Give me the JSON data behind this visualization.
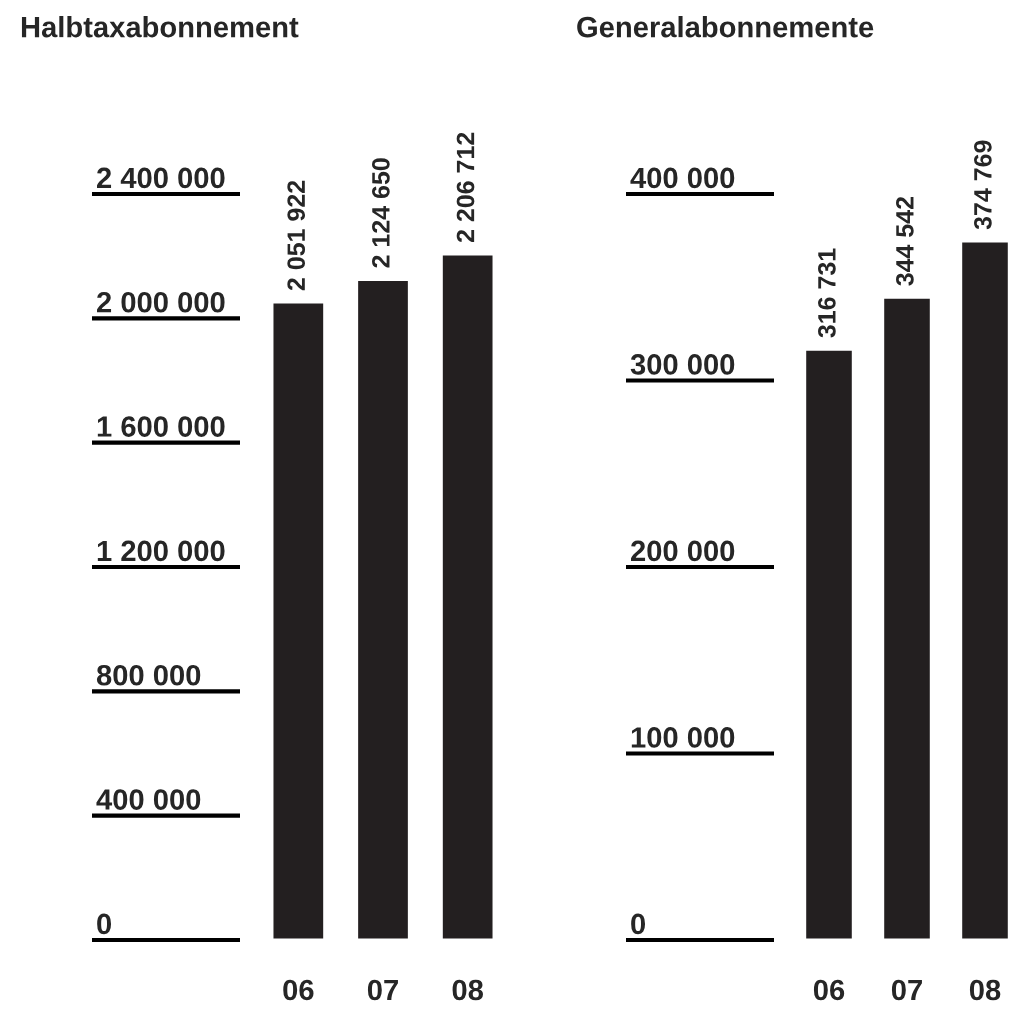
{
  "chart_data": [
    {
      "type": "bar",
      "title": "Halbtaxabonnement",
      "categories": [
        "06",
        "07",
        "08"
      ],
      "values": [
        2051922,
        2124650,
        2206712
      ],
      "value_labels": [
        "2 051 922",
        "2 124 650",
        "2 206 712"
      ],
      "color": "#231f20",
      "ylim": [
        0,
        2400000
      ],
      "yticks": [
        {
          "value": 0,
          "label": "0"
        },
        {
          "value": 400000,
          "label": "400 000"
        },
        {
          "value": 800000,
          "label": "800 000"
        },
        {
          "value": 1200000,
          "label": "1 200 000"
        },
        {
          "value": 1600000,
          "label": "1 600 000"
        },
        {
          "value": 2000000,
          "label": "2 000 000"
        },
        {
          "value": 2400000,
          "label": "2 400 000"
        }
      ],
      "grid": false,
      "legend": false
    },
    {
      "type": "bar",
      "title": "Generalabonnemente",
      "categories": [
        "06",
        "07",
        "08"
      ],
      "values": [
        316731,
        344542,
        374769
      ],
      "value_labels": [
        "316 731",
        "344 542",
        "374 769"
      ],
      "color": "#231f20",
      "ylim": [
        0,
        400000
      ],
      "yticks": [
        {
          "value": 0,
          "label": "0"
        },
        {
          "value": 100000,
          "label": "100 000"
        },
        {
          "value": 200000,
          "label": "200 000"
        },
        {
          "value": 300000,
          "label": "300 000"
        },
        {
          "value": 400000,
          "label": "400 000"
        }
      ],
      "grid": false,
      "legend": false
    }
  ]
}
